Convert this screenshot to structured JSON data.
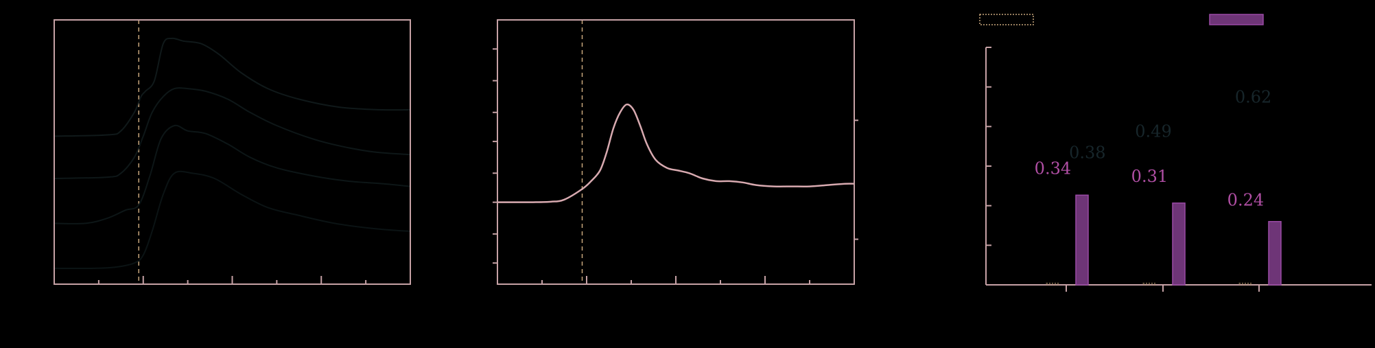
{
  "colors": {
    "background": "#000000",
    "frame": "#c7a2a6",
    "curve": "#d8aab0",
    "spectra": [
      "#10191a",
      "#0e1718",
      "#0d1617",
      "#0b1314"
    ],
    "bar_purple": "#6e3577",
    "bar_purple_edge": "#9a4aa6",
    "label_pink": "#b14fa5",
    "label_dark": "#17262b",
    "dashed_marker": "#c9a77d"
  },
  "chart_data": [
    {
      "type": "line",
      "title": "",
      "xlabel": "",
      "ylabel": "",
      "xlim": [
        0,
        8
      ],
      "ylim": [
        0,
        1
      ],
      "marker_x": 1.9,
      "x_major_ticks": [
        0,
        2,
        4,
        6,
        8
      ],
      "x_minor_ticks": [
        1,
        3,
        5,
        7
      ],
      "series": [
        {
          "x": [
            0,
            1.2,
            1.5,
            1.8,
            1.95,
            2.05,
            2.25,
            2.45,
            2.65,
            2.9,
            3.3,
            3.7,
            4.2,
            4.8,
            5.5,
            6.4,
            7.3,
            8.0
          ],
          "y": [
            0.56,
            0.565,
            0.58,
            0.65,
            0.71,
            0.73,
            0.77,
            0.91,
            0.93,
            0.92,
            0.91,
            0.87,
            0.8,
            0.74,
            0.7,
            0.67,
            0.66,
            0.66
          ]
        },
        {
          "x": [
            0,
            1.2,
            1.5,
            1.8,
            2.0,
            2.2,
            2.45,
            2.7,
            3.0,
            3.4,
            3.9,
            4.4,
            5.0,
            5.8,
            6.5,
            7.2,
            8.0
          ],
          "y": [
            0.4,
            0.405,
            0.42,
            0.48,
            0.56,
            0.65,
            0.71,
            0.74,
            0.74,
            0.73,
            0.7,
            0.65,
            0.6,
            0.55,
            0.52,
            0.5,
            0.49
          ]
        },
        {
          "x": [
            0,
            0.7,
            1.2,
            1.6,
            1.9,
            2.15,
            2.4,
            2.7,
            3.0,
            3.4,
            3.9,
            4.4,
            5.0,
            5.8,
            6.6,
            7.4,
            8.0
          ],
          "y": [
            0.23,
            0.23,
            0.25,
            0.28,
            0.3,
            0.41,
            0.55,
            0.6,
            0.58,
            0.57,
            0.53,
            0.48,
            0.44,
            0.41,
            0.39,
            0.38,
            0.37
          ]
        },
        {
          "x": [
            0,
            0.9,
            1.4,
            1.8,
            2.0,
            2.2,
            2.45,
            2.7,
            3.1,
            3.6,
            4.2,
            4.8,
            5.5,
            6.3,
            7.2,
            8.0
          ],
          "y": [
            0.06,
            0.06,
            0.065,
            0.08,
            0.11,
            0.2,
            0.34,
            0.42,
            0.42,
            0.4,
            0.34,
            0.29,
            0.26,
            0.23,
            0.21,
            0.2
          ]
        }
      ]
    },
    {
      "type": "line",
      "title": "",
      "xlabel": "",
      "ylabel": "",
      "xlim": [
        0,
        8
      ],
      "ylim": [
        0,
        1
      ],
      "marker_x": 1.9,
      "x_major_ticks": [
        2,
        4,
        6
      ],
      "x_minor_ticks": [
        1,
        3,
        5,
        7
      ],
      "left_ticks": [
        0.08,
        0.19,
        0.31,
        0.42,
        0.54,
        0.65,
        0.77,
        0.89
      ],
      "right_ticks": [
        0.17,
        0.62
      ],
      "series": [
        {
          "x": [
            0,
            0.4,
            0.8,
            1.2,
            1.5,
            1.9,
            2.1,
            2.3,
            2.45,
            2.6,
            2.75,
            2.9,
            3.05,
            3.2,
            3.35,
            3.55,
            3.8,
            4.05,
            4.3,
            4.6,
            4.9,
            5.2,
            5.5,
            5.8,
            6.2,
            6.6,
            7.0,
            7.4,
            7.8,
            8.0
          ],
          "y": [
            0.31,
            0.31,
            0.31,
            0.312,
            0.32,
            0.36,
            0.39,
            0.43,
            0.5,
            0.59,
            0.65,
            0.68,
            0.66,
            0.6,
            0.53,
            0.47,
            0.44,
            0.43,
            0.42,
            0.4,
            0.39,
            0.39,
            0.385,
            0.375,
            0.37,
            0.37,
            0.37,
            0.375,
            0.38,
            0.38
          ]
        }
      ]
    },
    {
      "type": "bar",
      "title": "",
      "xlabel": "",
      "ylabel": "",
      "ylim": [
        0,
        0.9
      ],
      "y_ticks": [
        0,
        0.15,
        0.3,
        0.45,
        0.6,
        0.75,
        0.9
      ],
      "categories": [
        "",
        "",
        ""
      ],
      "legend_position": "top",
      "series": [
        {
          "name": "",
          "style": "hollow-dotted",
          "values": [
            0.006,
            0.006,
            0.006
          ]
        },
        {
          "name": "",
          "style": "filled",
          "values": [
            0.34,
            0.31,
            0.24
          ]
        }
      ],
      "annotations": [
        {
          "text": "0.34",
          "color": "label_pink",
          "category": 0,
          "x_offset": -0.35,
          "y": 0.42
        },
        {
          "text": "0.38",
          "color": "label_dark",
          "category": 0,
          "x_offset": 0.55,
          "y": 0.48
        },
        {
          "text": "0.31",
          "color": "label_pink",
          "category": 1,
          "x_offset": -0.35,
          "y": 0.39
        },
        {
          "text": "0.49",
          "color": "label_dark",
          "category": 1,
          "x_offset": -0.25,
          "y": 0.56
        },
        {
          "text": "0.24",
          "color": "label_pink",
          "category": 2,
          "x_offset": -0.35,
          "y": 0.3
        },
        {
          "text": "0.62",
          "color": "label_dark",
          "category": 2,
          "x_offset": -0.15,
          "y": 0.69
        }
      ]
    }
  ]
}
